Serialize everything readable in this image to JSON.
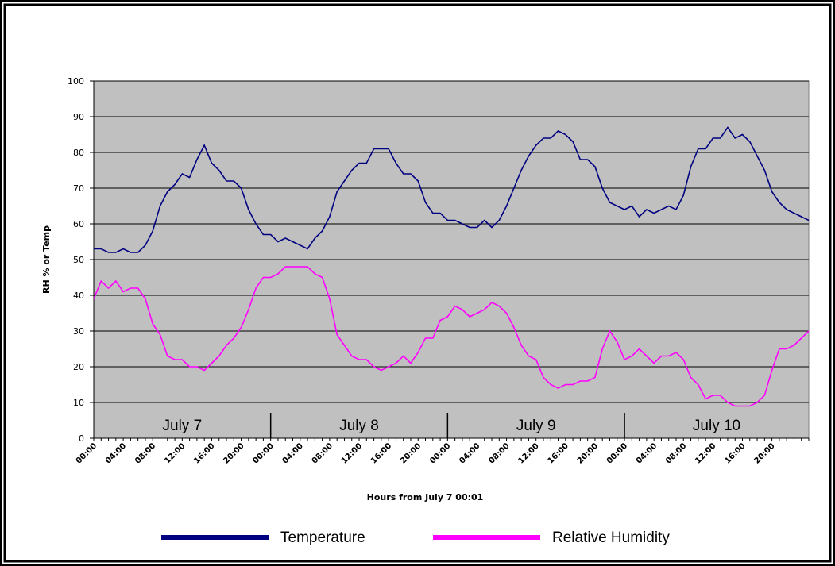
{
  "chart_data": {
    "type": "line",
    "xlabel": "Hours from July 7 00:01",
    "ylabel": "RH % or Temp",
    "categories": [
      "00:00",
      null,
      null,
      null,
      "04:00",
      null,
      null,
      null,
      "08:00",
      null,
      null,
      null,
      "12:00",
      null,
      null,
      null,
      "16:00",
      null,
      null,
      null,
      "20:00",
      null,
      null,
      null,
      "00:00",
      null,
      null,
      null,
      "04:00",
      null,
      null,
      null,
      "08:00",
      null,
      null,
      null,
      "12:00",
      null,
      null,
      null,
      "16:00",
      null,
      null,
      null,
      "20:00",
      null,
      null,
      null,
      "00:00",
      null,
      null,
      null,
      "04:00",
      null,
      null,
      null,
      "08:00",
      null,
      null,
      null,
      "12:00",
      null,
      null,
      null,
      "16:00",
      null,
      null,
      null,
      "20:00",
      null,
      null,
      null,
      "00:00",
      null,
      null,
      null,
      "04:00",
      null,
      null,
      null,
      "08:00",
      null,
      null,
      null,
      "12:00",
      null,
      null,
      null,
      "16:00",
      null,
      null,
      null,
      "20:00",
      null,
      null,
      null,
      null,
      null
    ],
    "series": [
      {
        "name": "Temperature",
        "color": "#000080",
        "values": [
          53,
          53,
          52,
          52,
          53,
          52,
          52,
          54,
          58,
          65,
          69,
          71,
          74,
          73,
          78,
          82,
          77,
          75,
          72,
          72,
          70,
          64,
          60,
          57,
          57,
          55,
          56,
          55,
          54,
          53,
          56,
          58,
          62,
          69,
          72,
          75,
          77,
          77,
          81,
          81,
          81,
          77,
          74,
          74,
          72,
          66,
          63,
          63,
          61,
          61,
          60,
          59,
          59,
          61,
          59,
          61,
          65,
          70,
          75,
          79,
          82,
          84,
          84,
          86,
          85,
          83,
          78,
          78,
          76,
          70,
          66,
          65,
          64,
          65,
          62,
          64,
          63,
          64,
          65,
          64,
          68,
          76,
          81,
          81,
          84,
          84,
          87,
          84,
          85,
          83,
          79,
          75,
          69,
          66,
          64,
          63,
          62,
          61
        ]
      },
      {
        "name": "Relative Humidity",
        "color": "#ff00ff",
        "values": [
          39,
          44,
          42,
          44,
          41,
          42,
          42,
          39,
          32,
          29,
          23,
          22,
          22,
          20,
          20,
          19,
          21,
          23,
          26,
          28,
          31,
          36,
          42,
          45,
          45,
          46,
          48,
          48,
          48,
          48,
          46,
          45,
          39,
          29,
          26,
          23,
          22,
          22,
          20,
          19,
          20,
          21,
          23,
          21,
          24,
          28,
          28,
          33,
          34,
          37,
          36,
          34,
          35,
          36,
          38,
          37,
          35,
          31,
          26,
          23,
          22,
          17,
          15,
          14,
          15,
          15,
          16,
          16,
          17,
          25,
          30,
          27,
          22,
          23,
          25,
          23,
          21,
          23,
          23,
          24,
          22,
          17,
          15,
          11,
          12,
          12,
          10,
          9,
          9,
          9,
          10,
          12,
          19,
          25,
          25,
          26,
          28,
          30
        ]
      }
    ],
    "annotations": [
      "July 7",
      "July 8",
      "July 9",
      "July 10"
    ],
    "ylim": [
      0,
      100
    ],
    "yticks": [
      0,
      10,
      20,
      30,
      40,
      50,
      60,
      70,
      80,
      90,
      100
    ],
    "grid": true,
    "legend": "bottom"
  }
}
